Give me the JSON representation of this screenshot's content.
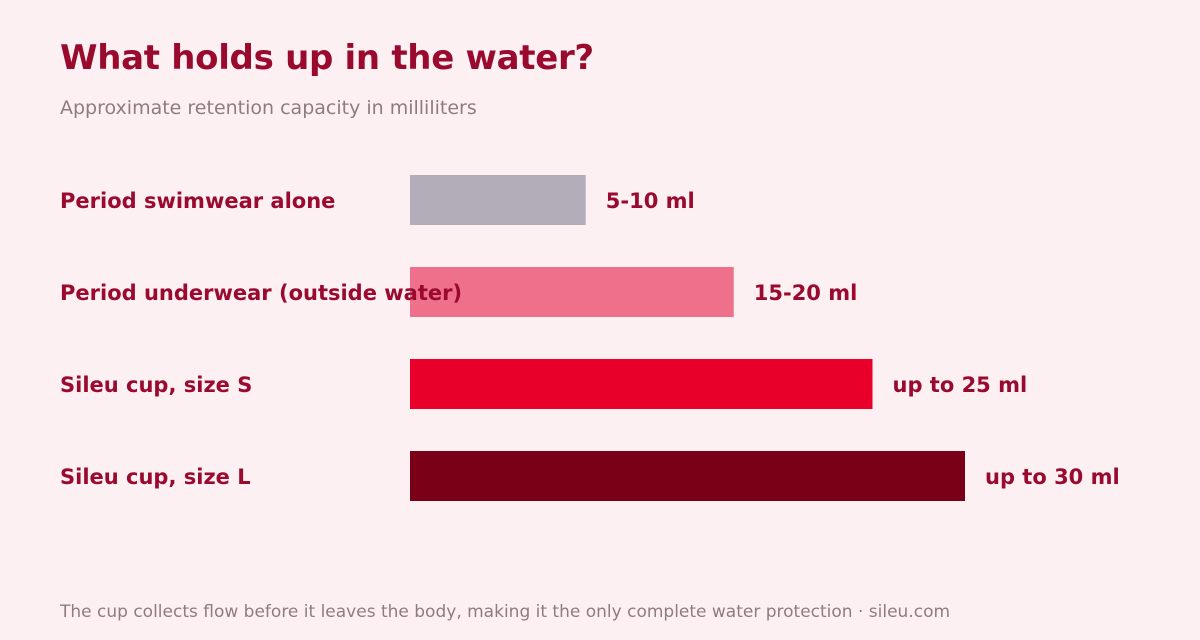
{
  "title": "What holds up in the water?",
  "subtitle": "Approximate retention capacity in milliliters",
  "footer": "The cup collects flow before it leaves the body, making it the only complete water protection · sileu.com",
  "colors": {
    "background": "#fdf0f3",
    "title": "#9a0a2e",
    "label": "#9a0a2e",
    "muted": "#8f7d7d"
  },
  "chart_data": {
    "type": "bar",
    "orientation": "horizontal",
    "categories": [
      "Period swimwear alone",
      "Period underwear (outside water)",
      "Sileu cup, size S",
      "Sileu cup, size L"
    ],
    "values": [
      9.5,
      17.5,
      25,
      30
    ],
    "value_labels": [
      "5-10 ml",
      "15-20 ml",
      "up to 25 ml",
      "up to 30 ml"
    ],
    "bar_colors": [
      "#b3adb9",
      "#ef708a",
      "#e8002a",
      "#7a0017"
    ],
    "unit": "ml",
    "xlim": [
      0,
      30
    ],
    "grid": false,
    "legend": "none"
  }
}
